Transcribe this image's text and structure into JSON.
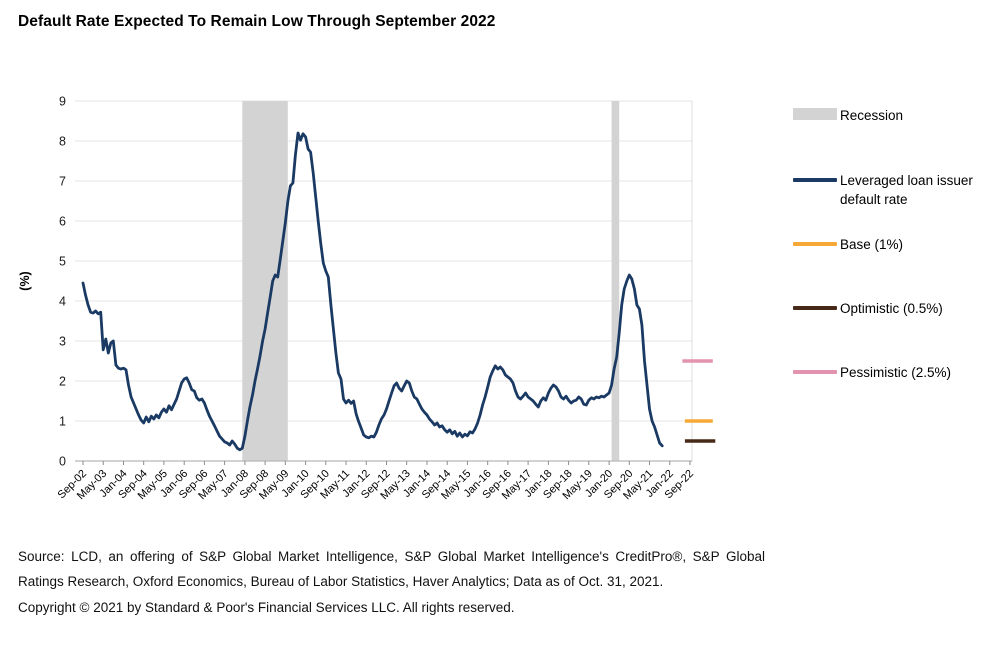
{
  "title": "Default Rate Expected To Remain Low Through September 2022",
  "legend": {
    "items": [
      {
        "label": "Recession",
        "type": "band",
        "color": "#d3d3d3"
      },
      {
        "label": "Leveraged loan issuer default rate",
        "type": "line",
        "color": "#1a3a64"
      },
      {
        "label": "Base (1%)",
        "type": "line",
        "color": "#f6a937"
      },
      {
        "label": "Optimistic (0.5%)",
        "type": "line",
        "color": "#462917"
      },
      {
        "label": "Pessimistic (2.5%)",
        "type": "line",
        "color": "#e293af"
      }
    ]
  },
  "footer": {
    "source_text": "Source: LCD, an offering of S&P Global Market Intelligence, S&P Global Market Intelligence's CreditPro®, S&P Global Ratings Research, Oxford Economics, Bureau of Labor Statistics, Haver Analytics; Data as of Oct. 31, 2021.",
    "copyright_text": "Copyright © 2021 by Standard & Poor's Financial Services LLC. All rights reserved."
  },
  "chart_data": {
    "type": "line",
    "title": "Default Rate Expected To Remain Low Through September 2022",
    "xlabel": "",
    "ylabel": "(%)",
    "ylim": [
      0,
      9
    ],
    "yticks": [
      0,
      1,
      2,
      3,
      4,
      5,
      6,
      7,
      8,
      9
    ],
    "grid": "horizontal",
    "legend_position": "right",
    "x_frequency": "monthly",
    "x_range": [
      "Sep-02",
      "Sep-22"
    ],
    "months_per_tick": 8,
    "x_tick_labels": [
      "Sep-02",
      "May-03",
      "Jan-04",
      "Sep-04",
      "May-05",
      "Jan-06",
      "Sep-06",
      "May-07",
      "Jan-08",
      "Sep-08",
      "May-09",
      "Jan-10",
      "Sep-10",
      "May-11",
      "Jan-12",
      "Sep-12",
      "May-13",
      "Jan-14",
      "Sep-14",
      "May-15",
      "Jan-16",
      "Sep-16",
      "May-17",
      "Jan-18",
      "Sep-18",
      "May-19",
      "Jan-20",
      "Sep-20",
      "May-21",
      "Jan-22",
      "Sep-22"
    ],
    "recession_color": "#d3d3d3",
    "recession_bands": [
      {
        "from_month_index": 63,
        "to_month_index": 81
      },
      {
        "from_month_index": 209,
        "to_month_index": 212
      }
    ],
    "series": [
      {
        "name": "Leveraged loan issuer default rate",
        "color": "#1a3a64",
        "start": "Sep-02",
        "end": "Oct-21",
        "values": [
          4.45,
          4.15,
          3.9,
          3.72,
          3.7,
          3.75,
          3.68,
          3.72,
          2.78,
          3.05,
          2.7,
          2.95,
          3.0,
          2.4,
          2.32,
          2.3,
          2.32,
          2.28,
          1.9,
          1.6,
          1.45,
          1.3,
          1.15,
          1.02,
          0.95,
          1.1,
          0.98,
          1.12,
          1.05,
          1.15,
          1.08,
          1.22,
          1.3,
          1.22,
          1.38,
          1.28,
          1.42,
          1.55,
          1.75,
          1.95,
          2.05,
          2.08,
          1.95,
          1.78,
          1.75,
          1.58,
          1.52,
          1.55,
          1.45,
          1.28,
          1.12,
          1.0,
          0.88,
          0.75,
          0.62,
          0.55,
          0.48,
          0.45,
          0.4,
          0.5,
          0.42,
          0.32,
          0.28,
          0.32,
          0.62,
          1.0,
          1.35,
          1.65,
          2.0,
          2.3,
          2.62,
          3.0,
          3.3,
          3.7,
          4.1,
          4.5,
          4.65,
          4.6,
          5.05,
          5.5,
          5.95,
          6.5,
          6.88,
          6.95,
          7.65,
          8.2,
          8.02,
          8.18,
          8.1,
          7.8,
          7.72,
          7.2,
          6.6,
          6.0,
          5.45,
          4.95,
          4.75,
          4.6,
          3.9,
          3.3,
          2.7,
          2.2,
          2.05,
          1.55,
          1.45,
          1.52,
          1.44,
          1.5,
          1.18,
          0.98,
          0.82,
          0.65,
          0.6,
          0.58,
          0.62,
          0.6,
          0.72,
          0.9,
          1.05,
          1.15,
          1.3,
          1.5,
          1.7,
          1.88,
          1.95,
          1.82,
          1.75,
          1.88,
          2.0,
          1.95,
          1.75,
          1.6,
          1.55,
          1.42,
          1.3,
          1.22,
          1.15,
          1.05,
          0.98,
          0.9,
          0.95,
          0.85,
          0.88,
          0.78,
          0.72,
          0.78,
          0.68,
          0.74,
          0.62,
          0.7,
          0.6,
          0.67,
          0.63,
          0.73,
          0.7,
          0.8,
          0.95,
          1.15,
          1.4,
          1.6,
          1.85,
          2.1,
          2.25,
          2.38,
          2.3,
          2.35,
          2.28,
          2.15,
          2.1,
          2.05,
          1.95,
          1.75,
          1.6,
          1.55,
          1.62,
          1.7,
          1.6,
          1.55,
          1.5,
          1.42,
          1.35,
          1.5,
          1.58,
          1.52,
          1.7,
          1.82,
          1.9,
          1.85,
          1.75,
          1.6,
          1.55,
          1.62,
          1.52,
          1.45,
          1.5,
          1.52,
          1.6,
          1.55,
          1.42,
          1.4,
          1.52,
          1.58,
          1.55,
          1.6,
          1.58,
          1.62,
          1.6,
          1.65,
          1.7,
          1.9,
          2.3,
          2.6,
          3.2,
          3.9,
          4.3,
          4.5,
          4.65,
          4.55,
          4.3,
          3.9,
          3.8,
          3.4,
          2.5,
          1.9,
          1.3,
          1.0,
          0.85,
          0.65,
          0.45,
          0.38
        ]
      }
    ],
    "forecast_markers": [
      {
        "id": "pessimistic",
        "label": "Pessimistic (2.5%)",
        "value": 2.5,
        "color": "#e293af",
        "from_month_index": 237,
        "to_month_index": 249
      },
      {
        "id": "base",
        "label": "Base (1%)",
        "value": 1.0,
        "color": "#f6a937",
        "from_month_index": 238,
        "to_month_index": 249
      },
      {
        "id": "optimistic",
        "label": "Optimistic (0.5%)",
        "value": 0.5,
        "color": "#462917",
        "from_month_index": 238,
        "to_month_index": 250
      }
    ]
  }
}
